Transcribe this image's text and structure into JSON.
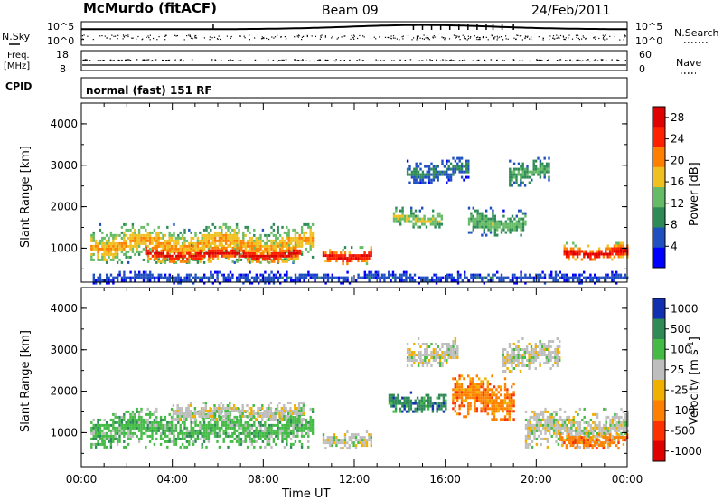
{
  "header": {
    "site": "McMurdo (fitACF)",
    "beam": "Beam 09",
    "date": "24/Feb/2011"
  },
  "summary_panels": {
    "nsky_label": "N.Sky",
    "nsearch_label": "N.Search",
    "nsky_ticks": [
      "10^5",
      "10^0"
    ],
    "nsearch_ticks": [
      "10^5",
      "10^0"
    ],
    "freq_label_lines": [
      "Freq.",
      "[MHz]"
    ],
    "freq_ticks": [
      "18",
      "8"
    ],
    "nave_label": "Nave",
    "nave_ticks": [
      "60",
      "0"
    ],
    "cpid_label": "CPID",
    "cpid_text": "normal (fast) 151 RF"
  },
  "chart_data": [
    {
      "type": "heatmap",
      "panel": "power",
      "ylabel": "Slant Range [km]",
      "xlabel": "",
      "xlim": [
        "00:00",
        "24:00"
      ],
      "ylim": [
        180,
        4500
      ],
      "ytick_labels": [
        "1000",
        "2000",
        "3000",
        "4000"
      ],
      "colorbar_label": "Power [dB]",
      "colorbar_ticks": [
        "4",
        "8",
        "12",
        "16",
        "20",
        "24",
        "28"
      ],
      "colorbar_range": [
        0,
        30
      ],
      "colorbar_colors": [
        "#0000ff",
        "#2050c0",
        "#2e8b57",
        "#66bb66",
        "#f0c020",
        "#ff8000",
        "#ff2000",
        "#e00000"
      ],
      "echo_regions": [
        {
          "t0": 0.4,
          "t1": 10.2,
          "r0": 650,
          "r1": 1600,
          "level": 0.65
        },
        {
          "t0": 2.8,
          "t1": 9.6,
          "r0": 650,
          "r1": 1100,
          "level": 0.95
        },
        {
          "t0": 10.6,
          "t1": 12.7,
          "r0": 650,
          "r1": 1050,
          "level": 0.95
        },
        {
          "t0": 13.7,
          "t1": 15.8,
          "r0": 1500,
          "r1": 2000,
          "level": 0.55
        },
        {
          "t0": 17.0,
          "t1": 19.5,
          "r0": 1300,
          "r1": 2000,
          "level": 0.45
        },
        {
          "t0": 18.8,
          "t1": 20.6,
          "r0": 2500,
          "r1": 3200,
          "level": 0.4
        },
        {
          "t0": 14.3,
          "t1": 17.0,
          "r0": 2600,
          "r1": 3200,
          "level": 0.3
        },
        {
          "t0": 21.2,
          "t1": 24.0,
          "r0": 700,
          "r1": 1150,
          "level": 0.95
        },
        {
          "t0": 0.5,
          "t1": 24.0,
          "r0": 180,
          "r1": 450,
          "level": 0.2
        }
      ]
    },
    {
      "type": "heatmap",
      "panel": "velocity",
      "ylabel": "Slant Range [km]",
      "xlabel": "Time UT",
      "xlim": [
        "00:00",
        "24:00"
      ],
      "ylim": [
        180,
        4500
      ],
      "xtick_labels": [
        "00:00",
        "04:00",
        "08:00",
        "12:00",
        "16:00",
        "20:00",
        "00:00"
      ],
      "ytick_labels": [
        "1000",
        "2000",
        "3000",
        "4000"
      ],
      "colorbar_label": "Velocity [m s^-1]",
      "colorbar_ticks": [
        "1000",
        "500",
        "100",
        "25",
        "-25",
        "-100",
        "-500",
        "-1000"
      ],
      "colorbar_colors": [
        "#1030b0",
        "#2e8b57",
        "#44bb44",
        "#bebebe",
        "#f0b000",
        "#ff8000",
        "#ff3000",
        "#e00000"
      ],
      "echo_regions": [
        {
          "t0": 0.4,
          "t1": 10.2,
          "r0": 650,
          "r1": 1600,
          "vel": "100"
        },
        {
          "t0": 4.0,
          "t1": 9.8,
          "r0": 1300,
          "r1": 1750,
          "vel": "25"
        },
        {
          "t0": 10.6,
          "t1": 12.7,
          "r0": 650,
          "r1": 1050,
          "vel": "25"
        },
        {
          "t0": 13.5,
          "t1": 16.0,
          "r0": 1500,
          "r1": 2000,
          "vel": "500"
        },
        {
          "t0": 14.3,
          "t1": 16.5,
          "r0": 2600,
          "r1": 3300,
          "vel": "25"
        },
        {
          "t0": 16.3,
          "t1": 19.0,
          "r0": 1300,
          "r1": 2400,
          "vel": "-100"
        },
        {
          "t0": 18.5,
          "t1": 21.0,
          "r0": 2500,
          "r1": 3300,
          "vel": "25"
        },
        {
          "t0": 19.5,
          "t1": 24.0,
          "r0": 650,
          "r1": 1600,
          "vel": "25"
        },
        {
          "t0": 21.0,
          "t1": 24.0,
          "r0": 650,
          "r1": 1050,
          "vel": "-100"
        }
      ]
    }
  ]
}
